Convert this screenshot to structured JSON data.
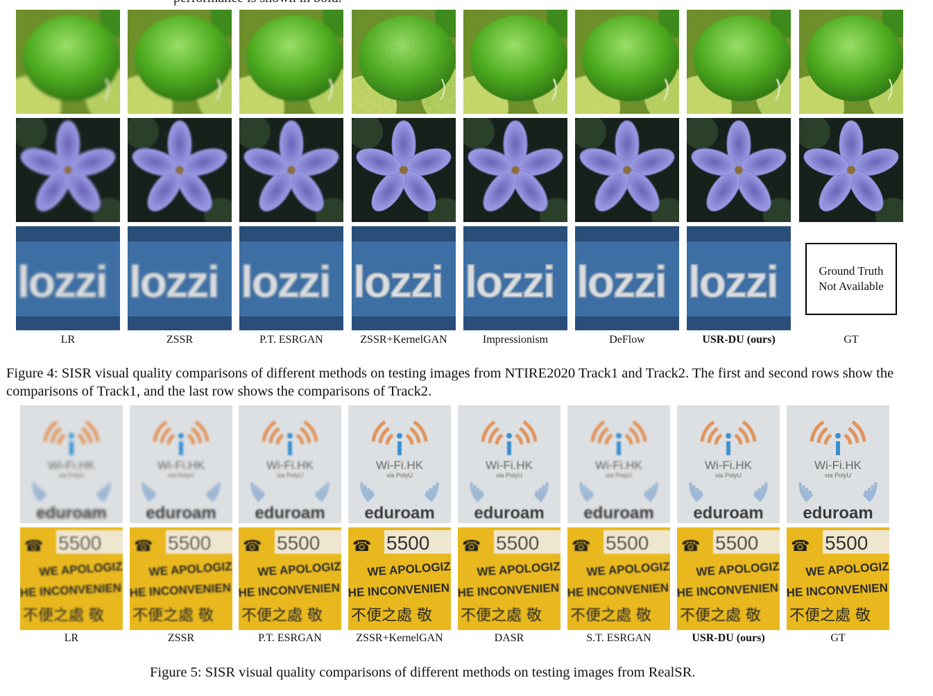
{
  "top_fragment": "performance is shown in bold.",
  "figure4": {
    "methods": [
      "LR",
      "ZSSR",
      "P.T. ESRGAN",
      "ZSSR+KernelGAN",
      "Impressionism",
      "DeFlow",
      "USR-DU (ours)",
      "GT"
    ],
    "rows": [
      "lime",
      "flower",
      "sign"
    ],
    "gt_unavailable": "Ground Truth\nNot Available",
    "sign_text": "lozzi",
    "caption": "Figure 4: SISR visual quality comparisons of different methods on testing images from NTIRE2020 Track1 and Track2. The first and second rows show the comparisons of Track1, and the last row shows the comparisons of Track2."
  },
  "figure5": {
    "methods": [
      "LR",
      "ZSSR",
      "P.T. ESRGAN",
      "ZSSR+KernelGAN",
      "DASR",
      "S.T. ESRGAN",
      "USR-DU (ours)",
      "GT"
    ],
    "rows": [
      "wifi",
      "phone"
    ],
    "wifi_title": "Wi-Fi.HK",
    "wifi_sub": "via PolyU",
    "eduroam": "eduroam",
    "phone_number": "5500",
    "apology_1": "WE APOLOGIZ",
    "apology_2": "HE INCONVENIEN",
    "chinese": "不便之處 敬",
    "caption": "Figure 5: SISR visual quality comparisons of different methods on testing images from RealSR."
  },
  "colors": {
    "lime_green": "#4fae1f",
    "flower_purple": "#8e8fd8",
    "sign_blue": "#3d6fa4",
    "wifi_orange": "#e0935a",
    "phone_yellow": "#e8b81e"
  }
}
